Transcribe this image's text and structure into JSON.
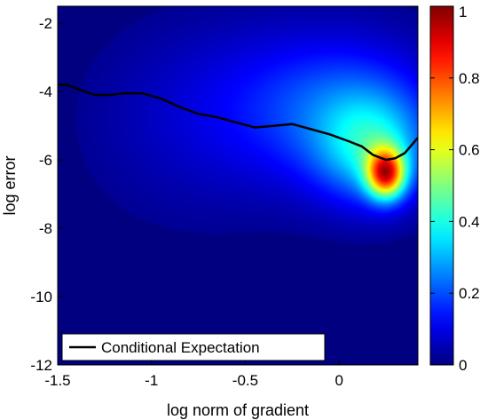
{
  "chart_data": [
    {
      "type": "heatmap",
      "xlabel": "log norm of gradient",
      "ylabel": "log error",
      "xlim": [
        -1.5,
        0.42
      ],
      "ylim": [
        -12,
        -1.5
      ],
      "xticks": [
        -1.5,
        -1,
        -0.5,
        0
      ],
      "xtick_labels": [
        "-1.5",
        "-1",
        "-0.5",
        "0"
      ],
      "yticks": [
        -12,
        -10,
        -8,
        -6,
        -4,
        -2
      ],
      "ytick_labels": [
        "-12",
        "-10",
        "-8",
        "-6",
        "-4",
        "-2"
      ],
      "colormap": "jet",
      "colorbar": {
        "range": [
          0,
          1
        ],
        "ticks": [
          0,
          0.2,
          0.4,
          0.6,
          0.8,
          1
        ],
        "tick_labels": [
          "0",
          "0.2",
          "0.4",
          "0.6",
          "0.8",
          "1"
        ]
      },
      "density_components": [
        {
          "x": 0.25,
          "y": -6.4,
          "sx": 0.07,
          "sy": 0.5,
          "weight": 1.0
        },
        {
          "x": 0.18,
          "y": -5.7,
          "sx": 0.2,
          "sy": 1.1,
          "weight": 0.4
        },
        {
          "x": 0.05,
          "y": -4.6,
          "sx": 0.35,
          "sy": 1.5,
          "weight": 0.22
        },
        {
          "x": -0.3,
          "y": -4.4,
          "sx": 0.45,
          "sy": 1.7,
          "weight": 0.12
        },
        {
          "x": -0.85,
          "y": -5.0,
          "sx": 0.4,
          "sy": 2.2,
          "weight": 0.06
        }
      ],
      "series": [
        {
          "name": "Conditional Expectation",
          "color": "#000000",
          "x": [
            -1.5,
            -1.45,
            -1.38,
            -1.3,
            -1.22,
            -1.15,
            -1.05,
            -0.95,
            -0.85,
            -0.75,
            -0.65,
            -0.55,
            -0.45,
            -0.35,
            -0.25,
            -0.15,
            -0.05,
            0.05,
            0.12,
            0.18,
            0.25,
            0.3,
            0.35,
            0.42
          ],
          "y": [
            -3.8,
            -3.8,
            -3.95,
            -4.1,
            -4.1,
            -4.05,
            -4.05,
            -4.2,
            -4.45,
            -4.65,
            -4.75,
            -4.9,
            -5.05,
            -5.0,
            -4.95,
            -5.1,
            -5.25,
            -5.45,
            -5.6,
            -5.85,
            -6.0,
            -5.95,
            -5.8,
            -5.35
          ]
        }
      ],
      "legend": {
        "position": "bottom-left",
        "label": "Conditional Expectation"
      }
    }
  ]
}
